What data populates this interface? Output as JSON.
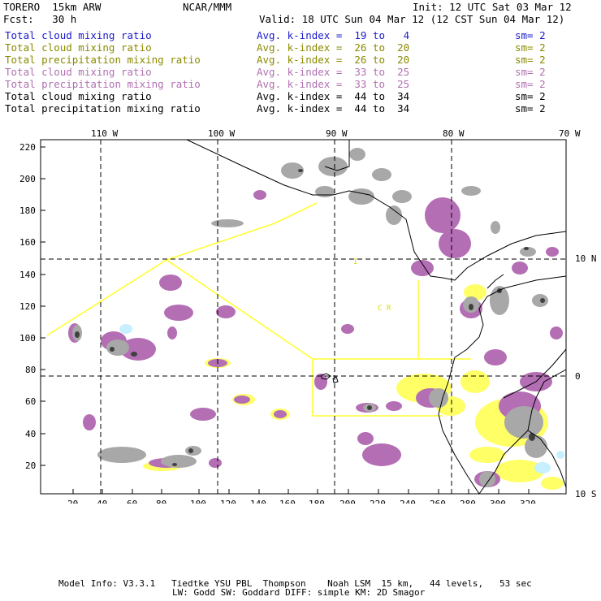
{
  "header": {
    "model": "TORERO  15km ARW",
    "center": "NCAR/MMM",
    "init": "Init: 12 UTC Sat 03 Mar 12",
    "fcst": "Fcst:   30 h",
    "valid": "Valid: 18 UTC Sun 04 Mar 12 (12 CST Sun 04 Mar 12)"
  },
  "fields": [
    {
      "name": "Total cloud mixing ratio",
      "kindex": "Avg. k-index =  19 to   4",
      "sm": "sm= 2",
      "color": "#1a1acc"
    },
    {
      "name": "Total cloud mixing ratio",
      "kindex": "Avg. k-index =  26 to  20",
      "sm": "sm= 2",
      "color": "#8a8a00"
    },
    {
      "name": "Total precipitation mixing ratio",
      "kindex": "Avg. k-index =  26 to  20",
      "sm": "sm= 2",
      "color": "#8a8a00"
    },
    {
      "name": "Total cloud mixing ratio",
      "kindex": "Avg. k-index =  33 to  25",
      "sm": "sm= 2",
      "color": "#b070b0"
    },
    {
      "name": "Total precipitation mixing ratio",
      "kindex": "Avg. k-index =  33 to  25",
      "sm": "sm= 2",
      "color": "#b070b0"
    },
    {
      "name": "Total cloud mixing ratio",
      "kindex": "Avg. k-index =  44 to  34",
      "sm": "sm= 2",
      "color": "#000000"
    },
    {
      "name": "Total precipitation mixing ratio",
      "kindex": "Avg. k-index =  44 to  34",
      "sm": "sm= 2",
      "color": "#000000"
    }
  ],
  "map": {
    "top_lon_labels": [
      "110 W",
      "100 W",
      "90 W",
      "80 W",
      "70 W"
    ],
    "right_lat_labels": [
      "10 N",
      "0",
      "10 S"
    ],
    "left_ticks": [
      "220",
      "200",
      "180",
      "160",
      "140",
      "120",
      "100",
      "80",
      "60",
      "40",
      "20"
    ],
    "bottom_ticks": [
      "20",
      "40",
      "60",
      "80",
      "100",
      "120",
      "140",
      "160",
      "180",
      "200",
      "220",
      "240",
      "260",
      "280",
      "300",
      "320"
    ],
    "region_labels": [
      "I",
      "C R"
    ],
    "colors": {
      "blue_cloud": "#c6f0ff",
      "yellow_cloud": "#ffff66",
      "purple": "#b46eb4",
      "gray": "#a8a8a8",
      "dark": "#404040",
      "boundary": "#ffff33"
    }
  },
  "footer": {
    "line1": "Model Info: V3.3.1   Tiedtke YSU PBL  Thompson    Noah LSM  15 km,   44 levels,   53 sec",
    "line2": "LW: Godd SW: Goddard DIFF: simple KM: 2D Smagor"
  }
}
